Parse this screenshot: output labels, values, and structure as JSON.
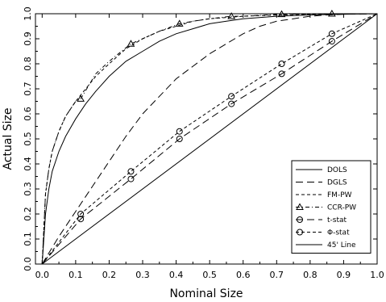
{
  "chart_data": {
    "type": "line",
    "title": "",
    "xlabel": "Nominal Size",
    "ylabel": "Actual Size",
    "xlim": [
      -0.02,
      1.0
    ],
    "ylim": [
      0.0,
      1.0
    ],
    "xticks": [
      "0.0",
      "0.1",
      "0.2",
      "0.3",
      "0.4",
      "0.5",
      "0.6",
      "0.7",
      "0.8",
      "0.9",
      "1.0"
    ],
    "xtick_values": [
      0.0,
      0.1,
      0.2,
      0.3,
      0.4,
      0.5,
      0.6,
      0.7,
      0.8,
      0.9,
      1.0
    ],
    "yticks": [
      "0.0",
      "0.1",
      "0.2",
      "0.3",
      "0.4",
      "0.5",
      "0.6",
      "0.7",
      "0.8",
      "0.9",
      "1.0"
    ],
    "ytick_values": [
      0.0,
      0.1,
      0.2,
      0.3,
      0.4,
      0.5,
      0.6,
      0.7,
      0.8,
      0.9,
      1.0
    ],
    "grid": false,
    "legend_position": "bottom-right",
    "series": [
      {
        "name": "DOLS",
        "dash": "solid",
        "marker": "none",
        "x": [
          0.0,
          0.01,
          0.02,
          0.03,
          0.05,
          0.07,
          0.1,
          0.13,
          0.16,
          0.2,
          0.25,
          0.3,
          0.35,
          0.4,
          0.45,
          0.5,
          0.55,
          0.6,
          0.7,
          0.8,
          0.9,
          1.0
        ],
        "y": [
          0.0,
          0.2,
          0.3,
          0.37,
          0.45,
          0.51,
          0.58,
          0.64,
          0.69,
          0.75,
          0.81,
          0.85,
          0.89,
          0.92,
          0.94,
          0.96,
          0.97,
          0.98,
          0.99,
          0.995,
          0.998,
          1.0
        ]
      },
      {
        "name": "DGLS",
        "dash": "longdash",
        "marker": "none",
        "x": [
          0.0,
          0.05,
          0.1,
          0.15,
          0.2,
          0.25,
          0.3,
          0.35,
          0.4,
          0.45,
          0.5,
          0.55,
          0.6,
          0.65,
          0.7,
          0.75,
          0.8,
          0.85,
          0.9,
          1.0
        ],
        "y": [
          0.0,
          0.11,
          0.21,
          0.31,
          0.41,
          0.51,
          0.6,
          0.67,
          0.74,
          0.79,
          0.84,
          0.88,
          0.92,
          0.95,
          0.97,
          0.98,
          0.99,
          0.995,
          0.998,
          1.0
        ]
      },
      {
        "name": "FM-PW",
        "dash": "shortdash",
        "marker": "none",
        "x": [
          0.0,
          0.01,
          0.02,
          0.03,
          0.05,
          0.07,
          0.1,
          0.13,
          0.16,
          0.2,
          0.25,
          0.3,
          0.35,
          0.4,
          0.45,
          0.5,
          0.55,
          0.6,
          0.7,
          0.8,
          0.9,
          1.0
        ],
        "y": [
          0.0,
          0.28,
          0.38,
          0.45,
          0.53,
          0.59,
          0.65,
          0.7,
          0.75,
          0.8,
          0.86,
          0.9,
          0.93,
          0.95,
          0.97,
          0.98,
          0.985,
          0.99,
          0.995,
          0.998,
          0.999,
          1.0
        ]
      },
      {
        "name": "CCR-PW",
        "dash": "dashdot",
        "marker": "triangle",
        "x": [
          0.0,
          0.01,
          0.02,
          0.03,
          0.05,
          0.07,
          0.1,
          0.115,
          0.16,
          0.2,
          0.265,
          0.3,
          0.35,
          0.41,
          0.45,
          0.5,
          0.565,
          0.6,
          0.715,
          0.8,
          0.865,
          1.0
        ],
        "y": [
          0.0,
          0.28,
          0.38,
          0.45,
          0.53,
          0.59,
          0.65,
          0.66,
          0.76,
          0.81,
          0.88,
          0.9,
          0.93,
          0.96,
          0.97,
          0.98,
          0.99,
          0.99,
          0.998,
          0.999,
          1.0,
          1.0
        ],
        "markers_at": [
          0.115,
          0.265,
          0.41,
          0.565,
          0.715,
          0.865
        ]
      },
      {
        "name": "t-stat",
        "dash": "longdash",
        "marker": "circle",
        "x": [
          0.0,
          0.115,
          0.265,
          0.41,
          0.565,
          0.715,
          0.865,
          1.0
        ],
        "y": [
          0.0,
          0.18,
          0.34,
          0.5,
          0.64,
          0.76,
          0.89,
          1.0
        ],
        "markers_at": [
          0.115,
          0.265,
          0.41,
          0.565,
          0.715,
          0.865
        ]
      },
      {
        "name": "Φ-stat",
        "dash": "shortdash",
        "marker": "circle",
        "x": [
          0.0,
          0.115,
          0.265,
          0.41,
          0.565,
          0.715,
          0.865,
          1.0
        ],
        "y": [
          0.0,
          0.2,
          0.37,
          0.53,
          0.67,
          0.8,
          0.92,
          1.0
        ],
        "markers_at": [
          0.115,
          0.265,
          0.41,
          0.565,
          0.715,
          0.865
        ]
      },
      {
        "name": "45' Line",
        "dash": "solid",
        "marker": "none",
        "x": [
          0.0,
          1.0
        ],
        "y": [
          0.0,
          1.0
        ]
      }
    ]
  }
}
